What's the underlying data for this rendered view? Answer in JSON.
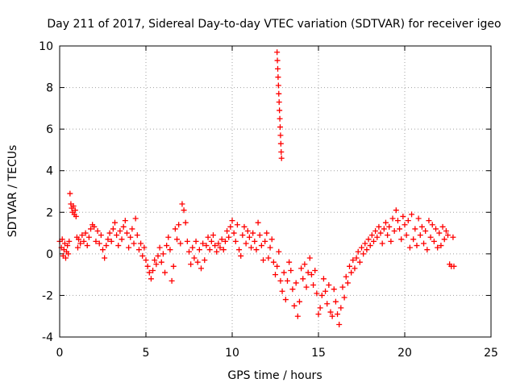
{
  "chart_data": {
    "type": "scatter",
    "title": "Day 211 of 2017, Sidereal Day-to-day VTEC variation (SDTVAR) for receiver igeo",
    "xlabel": "GPS time / hours",
    "ylabel": "SDTVAR / TECUs",
    "xlim": [
      0,
      25
    ],
    "ylim": [
      -4,
      10
    ],
    "xticks": [
      0,
      5,
      10,
      15,
      20,
      25
    ],
    "yticks": [
      -4,
      -2,
      0,
      2,
      4,
      6,
      8,
      10
    ],
    "grid": true,
    "marker": "+",
    "marker_color": "#ff0000",
    "series": [
      {
        "name": "SDTVAR",
        "points": [
          [
            0.0,
            0.6
          ],
          [
            0.1,
            0.3
          ],
          [
            0.15,
            0.7
          ],
          [
            0.2,
            -0.1
          ],
          [
            0.25,
            0.2
          ],
          [
            0.3,
            0.5
          ],
          [
            0.35,
            -0.2
          ],
          [
            0.4,
            0.1
          ],
          [
            0.45,
            0.4
          ],
          [
            0.5,
            0.0
          ],
          [
            0.55,
            0.6
          ],
          [
            0.6,
            2.9
          ],
          [
            0.65,
            2.4
          ],
          [
            0.7,
            2.2
          ],
          [
            0.75,
            2.0
          ],
          [
            0.8,
            2.3
          ],
          [
            0.85,
            1.9
          ],
          [
            0.9,
            2.1
          ],
          [
            0.95,
            1.8
          ],
          [
            1.0,
            0.8
          ],
          [
            1.05,
            0.3
          ],
          [
            1.1,
            0.7
          ],
          [
            1.2,
            0.5
          ],
          [
            1.3,
            0.9
          ],
          [
            1.4,
            0.6
          ],
          [
            1.5,
            1.0
          ],
          [
            1.6,
            0.4
          ],
          [
            1.7,
            0.8
          ],
          [
            1.8,
            1.2
          ],
          [
            1.9,
            1.4
          ],
          [
            2.0,
            1.3
          ],
          [
            2.1,
            0.6
          ],
          [
            2.2,
            1.1
          ],
          [
            2.3,
            0.5
          ],
          [
            2.4,
            0.9
          ],
          [
            2.5,
            0.2
          ],
          [
            2.6,
            -0.2
          ],
          [
            2.7,
            0.4
          ],
          [
            2.8,
            0.7
          ],
          [
            2.9,
            1.0
          ],
          [
            3.0,
            0.6
          ],
          [
            3.1,
            1.2
          ],
          [
            3.2,
            1.5
          ],
          [
            3.3,
            0.9
          ],
          [
            3.4,
            0.4
          ],
          [
            3.5,
            1.1
          ],
          [
            3.6,
            0.7
          ],
          [
            3.7,
            1.3
          ],
          [
            3.8,
            1.6
          ],
          [
            3.9,
            1.0
          ],
          [
            4.0,
            0.3
          ],
          [
            4.1,
            0.8
          ],
          [
            4.2,
            1.2
          ],
          [
            4.3,
            0.5
          ],
          [
            4.4,
            1.7
          ],
          [
            4.5,
            0.9
          ],
          [
            4.6,
            0.2
          ],
          [
            4.7,
            0.5
          ],
          [
            4.8,
            -0.1
          ],
          [
            4.9,
            0.3
          ],
          [
            5.0,
            -0.3
          ],
          [
            5.1,
            -0.6
          ],
          [
            5.2,
            -0.9
          ],
          [
            5.3,
            -1.2
          ],
          [
            5.4,
            -0.8
          ],
          [
            5.5,
            -0.3
          ],
          [
            5.6,
            -0.5
          ],
          [
            5.7,
            -0.1
          ],
          [
            5.8,
            0.3
          ],
          [
            5.9,
            -0.4
          ],
          [
            6.0,
            0.0
          ],
          [
            6.1,
            -0.9
          ],
          [
            6.2,
            0.4
          ],
          [
            6.3,
            0.8
          ],
          [
            6.4,
            0.2
          ],
          [
            6.5,
            -1.3
          ],
          [
            6.6,
            -0.6
          ],
          [
            6.7,
            1.2
          ],
          [
            6.8,
            0.7
          ],
          [
            6.9,
            1.4
          ],
          [
            7.0,
            0.5
          ],
          [
            7.1,
            2.4
          ],
          [
            7.2,
            2.1
          ],
          [
            7.3,
            1.5
          ],
          [
            7.4,
            0.6
          ],
          [
            7.5,
            0.1
          ],
          [
            7.6,
            -0.5
          ],
          [
            7.7,
            0.3
          ],
          [
            7.8,
            -0.2
          ],
          [
            7.9,
            0.6
          ],
          [
            8.0,
            -0.4
          ],
          [
            8.1,
            0.2
          ],
          [
            8.2,
            -0.7
          ],
          [
            8.3,
            0.5
          ],
          [
            8.4,
            -0.3
          ],
          [
            8.5,
            0.4
          ],
          [
            8.6,
            0.8
          ],
          [
            8.7,
            0.2
          ],
          [
            8.8,
            0.6
          ],
          [
            8.9,
            0.9
          ],
          [
            9.0,
            0.4
          ],
          [
            9.1,
            0.1
          ],
          [
            9.2,
            0.5
          ],
          [
            9.3,
            0.3
          ],
          [
            9.4,
            0.7
          ],
          [
            9.5,
            0.2
          ],
          [
            9.6,
            0.6
          ],
          [
            9.7,
            1.1
          ],
          [
            9.8,
            0.8
          ],
          [
            9.9,
            1.3
          ],
          [
            10.0,
            1.6
          ],
          [
            10.1,
            1.0
          ],
          [
            10.2,
            0.6
          ],
          [
            10.3,
            1.4
          ],
          [
            10.4,
            0.2
          ],
          [
            10.5,
            -0.1
          ],
          [
            10.6,
            0.9
          ],
          [
            10.7,
            1.3
          ],
          [
            10.8,
            0.5
          ],
          [
            10.9,
            1.1
          ],
          [
            11.0,
            0.8
          ],
          [
            11.1,
            0.3
          ],
          [
            11.2,
            1.0
          ],
          [
            11.3,
            0.6
          ],
          [
            11.4,
            0.2
          ],
          [
            11.5,
            1.5
          ],
          [
            11.6,
            0.9
          ],
          [
            11.7,
            0.4
          ],
          [
            11.8,
            -0.3
          ],
          [
            11.9,
            0.6
          ],
          [
            12.0,
            1.0
          ],
          [
            12.1,
            -0.2
          ],
          [
            12.2,
            0.3
          ],
          [
            12.3,
            0.7
          ],
          [
            12.4,
            -0.4
          ],
          [
            12.5,
            -1.0
          ],
          [
            12.6,
            -0.6
          ],
          [
            12.7,
            0.1
          ],
          [
            12.8,
            -1.3
          ],
          [
            12.9,
            -1.8
          ],
          [
            13.0,
            -0.9
          ],
          [
            13.1,
            -2.2
          ],
          [
            13.2,
            -1.3
          ],
          [
            13.3,
            -0.4
          ],
          [
            13.4,
            -0.8
          ],
          [
            13.5,
            -1.7
          ],
          [
            13.6,
            -2.5
          ],
          [
            13.7,
            -1.4
          ],
          [
            13.8,
            -3.0
          ],
          [
            13.9,
            -2.3
          ],
          [
            14.0,
            -0.7
          ],
          [
            14.1,
            -1.2
          ],
          [
            14.2,
            -0.5
          ],
          [
            14.3,
            -1.6
          ],
          [
            14.4,
            -0.9
          ],
          [
            14.5,
            -0.2
          ],
          [
            14.6,
            -1.0
          ],
          [
            14.7,
            -1.5
          ],
          [
            14.8,
            -0.8
          ],
          [
            14.9,
            -1.9
          ],
          [
            15.0,
            -2.9
          ],
          [
            15.1,
            -2.6
          ],
          [
            15.2,
            -2.0
          ],
          [
            15.3,
            -1.2
          ],
          [
            15.4,
            -1.8
          ],
          [
            15.5,
            -2.4
          ],
          [
            15.6,
            -1.5
          ],
          [
            15.7,
            -2.8
          ],
          [
            15.8,
            -3.0
          ],
          [
            15.9,
            -1.7
          ],
          [
            16.0,
            -2.3
          ],
          [
            16.1,
            -2.9
          ],
          [
            16.2,
            -3.4
          ],
          [
            16.3,
            -2.6
          ],
          [
            16.4,
            -1.6
          ],
          [
            16.5,
            -2.1
          ],
          [
            16.6,
            -1.1
          ],
          [
            16.7,
            -1.4
          ],
          [
            16.8,
            -0.6
          ],
          [
            16.9,
            -0.9
          ],
          [
            17.0,
            -0.3
          ],
          [
            17.1,
            -0.7
          ],
          [
            17.2,
            -0.2
          ],
          [
            17.3,
            0.1
          ],
          [
            17.4,
            -0.4
          ],
          [
            17.5,
            0.3
          ],
          [
            17.6,
            0.0
          ],
          [
            17.7,
            0.5
          ],
          [
            17.8,
            0.2
          ],
          [
            17.9,
            0.7
          ],
          [
            18.0,
            0.4
          ],
          [
            18.1,
            0.9
          ],
          [
            18.2,
            0.6
          ],
          [
            18.3,
            1.1
          ],
          [
            18.4,
            0.8
          ],
          [
            18.5,
            1.3
          ],
          [
            18.6,
            1.0
          ],
          [
            18.7,
            0.5
          ],
          [
            18.8,
            1.2
          ],
          [
            18.9,
            1.5
          ],
          [
            19.0,
            0.9
          ],
          [
            19.1,
            1.3
          ],
          [
            19.2,
            0.6
          ],
          [
            19.3,
            1.7
          ],
          [
            19.4,
            1.1
          ],
          [
            19.5,
            2.1
          ],
          [
            19.6,
            1.6
          ],
          [
            19.7,
            1.2
          ],
          [
            19.8,
            0.7
          ],
          [
            19.9,
            1.8
          ],
          [
            20.0,
            1.4
          ],
          [
            20.1,
            0.9
          ],
          [
            20.2,
            1.6
          ],
          [
            20.3,
            0.3
          ],
          [
            20.4,
            1.9
          ],
          [
            20.5,
            0.7
          ],
          [
            20.6,
            1.2
          ],
          [
            20.7,
            0.4
          ],
          [
            20.8,
            1.7
          ],
          [
            20.9,
            0.9
          ],
          [
            21.0,
            1.3
          ],
          [
            21.1,
            0.5
          ],
          [
            21.2,
            1.1
          ],
          [
            21.3,
            0.2
          ],
          [
            21.4,
            1.6
          ],
          [
            21.5,
            0.8
          ],
          [
            21.6,
            1.4
          ],
          [
            21.7,
            0.6
          ],
          [
            21.8,
            1.2
          ],
          [
            21.9,
            0.3
          ],
          [
            22.0,
            1.0
          ],
          [
            22.1,
            0.4
          ],
          [
            22.2,
            1.3
          ],
          [
            22.3,
            0.7
          ],
          [
            22.4,
            1.1
          ],
          [
            22.5,
            0.9
          ],
          [
            22.6,
            -0.5
          ],
          [
            22.7,
            -0.6
          ],
          [
            22.8,
            0.8
          ],
          [
            22.85,
            -0.6
          ],
          [
            12.6,
            9.7
          ],
          [
            12.62,
            9.3
          ],
          [
            12.64,
            8.9
          ],
          [
            12.66,
            8.5
          ],
          [
            12.68,
            8.1
          ],
          [
            12.7,
            7.7
          ],
          [
            12.72,
            7.3
          ],
          [
            12.74,
            6.9
          ],
          [
            12.76,
            6.5
          ],
          [
            12.78,
            6.1
          ],
          [
            12.8,
            5.7
          ],
          [
            12.82,
            5.3
          ],
          [
            12.84,
            4.9
          ],
          [
            12.86,
            4.6
          ]
        ]
      }
    ]
  }
}
